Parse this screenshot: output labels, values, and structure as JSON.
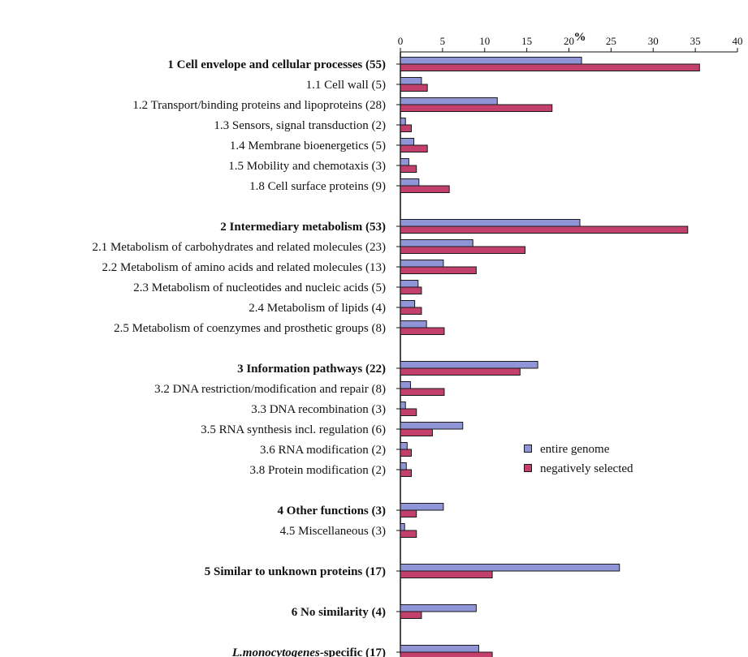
{
  "chart_data": {
    "type": "bar",
    "orientation": "horizontal",
    "title": "",
    "xlabel": "%",
    "xaxis_position": "top",
    "xlim": [
      0,
      40
    ],
    "xticks": [
      0,
      5,
      10,
      15,
      20,
      25,
      30,
      35,
      40
    ],
    "grid": false,
    "legend_position": "right-middle",
    "series": [
      {
        "name": "entire genome",
        "color": "#8f95d6"
      },
      {
        "name": "negatively selected",
        "color": "#c2406b"
      }
    ],
    "categories": [
      {
        "label": "1 Cell envelope and cellular processes (55)",
        "bold": true,
        "values": [
          21.5,
          35.5
        ]
      },
      {
        "label": "1.1 Cell wall (5)",
        "bold": false,
        "values": [
          2.5,
          3.2
        ]
      },
      {
        "label": "1.2 Transport/binding proteins and lipoproteins (28)",
        "bold": false,
        "values": [
          11.5,
          18.0
        ]
      },
      {
        "label": "1.3 Sensors, signal transduction (2)",
        "bold": false,
        "values": [
          0.6,
          1.3
        ]
      },
      {
        "label": "1.4 Membrane bioenergetics (5)",
        "bold": false,
        "values": [
          1.6,
          3.2
        ]
      },
      {
        "label": "1.5 Mobility and chemotaxis (3)",
        "bold": false,
        "values": [
          1.0,
          1.9
        ]
      },
      {
        "label": "1.8 Cell surface proteins (9)",
        "bold": false,
        "values": [
          2.2,
          5.8
        ]
      },
      {
        "label": "2 Intermediary metabolism (53)",
        "bold": true,
        "values": [
          21.3,
          34.1
        ]
      },
      {
        "label": "2.1 Metabolism of carbohydrates and related molecules (23)",
        "bold": false,
        "values": [
          8.6,
          14.8
        ]
      },
      {
        "label": "2.2 Metabolism of amino acids and related molecules (13)",
        "bold": false,
        "values": [
          5.1,
          9.0
        ]
      },
      {
        "label": "2.3 Metabolism of nucleotides and nucleic acids (5)",
        "bold": false,
        "values": [
          2.1,
          2.5
        ]
      },
      {
        "label": "2.4 Metabolism of lipids (4)",
        "bold": false,
        "values": [
          1.7,
          2.5
        ]
      },
      {
        "label": "2.5 Metabolism of coenzymes and prosthetic groups (8)",
        "bold": false,
        "values": [
          3.1,
          5.2
        ]
      },
      {
        "label": "3 Information pathways (22)",
        "bold": true,
        "values": [
          16.3,
          14.2
        ]
      },
      {
        "label": "3.2 DNA restriction/modification and repair (8)",
        "bold": false,
        "values": [
          1.2,
          5.2
        ]
      },
      {
        "label": "3.3 DNA recombination (3)",
        "bold": false,
        "values": [
          0.6,
          1.9
        ]
      },
      {
        "label": "3.5 RNA synthesis incl. regulation (6)",
        "bold": false,
        "values": [
          7.4,
          3.8
        ]
      },
      {
        "label": "3.6 RNA modification (2)",
        "bold": false,
        "values": [
          0.8,
          1.3
        ]
      },
      {
        "label": "3.8 Protein modification (2)",
        "bold": false,
        "values": [
          0.7,
          1.3
        ]
      },
      {
        "label": "4 Other functions (3)",
        "bold": true,
        "values": [
          5.1,
          1.9
        ]
      },
      {
        "label": "4.5 Miscellaneous (3)",
        "bold": false,
        "values": [
          0.5,
          1.9
        ]
      },
      {
        "label": "5 Similar to unknown proteins (17)",
        "bold": true,
        "values": [
          26.0,
          10.9
        ]
      },
      {
        "label": "6 No similarity (4)",
        "bold": true,
        "values": [
          9.0,
          2.5
        ]
      },
      {
        "label_italic": "L.monocytogenes",
        "label_rest": "-specific (17)",
        "bold": true,
        "values": [
          9.3,
          10.9
        ]
      }
    ]
  }
}
